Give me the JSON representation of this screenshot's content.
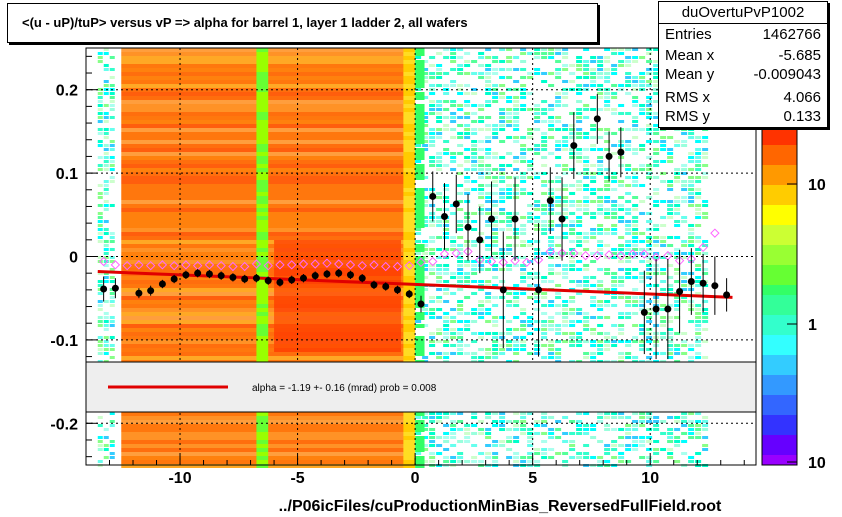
{
  "title": "<(u - uP)/tuP> versus   vP => alpha for barrel 1, layer 1 ladder 2, all wafers",
  "stats": {
    "name": "duOvertuPvP1002",
    "rows": [
      {
        "key": "Entries",
        "value": "1462766"
      },
      {
        "key": "Mean x",
        "value": "-5.685"
      },
      {
        "key": "Mean y",
        "value": "-0.009043"
      },
      {
        "key": "RMS x",
        "value": "4.066"
      },
      {
        "key": "RMS y",
        "value": "0.133"
      }
    ]
  },
  "fit_label": "alpha =   -1.19 +-  0.16 (mrad) prob = 0.008",
  "xlabel": "../P06icFiles/cuProductionMinBias_ReversedFullField.root",
  "colors": {
    "fit": "#e00000",
    "points": "#000000",
    "open_points": "#ff66ff"
  },
  "chart_data": {
    "type": "scatter",
    "title": "<(u - uP)/tuP> versus   vP => alpha for barrel 1, layer 1 ladder 2, all wafers",
    "xlabel": "../P06icFiles/cuProductionMinBias_ReversedFullField.root",
    "ylabel": "",
    "xlim": [
      -14,
      14.5
    ],
    "ylim": [
      -0.25,
      0.25
    ],
    "xticks": [
      -10,
      -5,
      0,
      5,
      10
    ],
    "xtick_labels": [
      "-10",
      "-5",
      "0",
      "5",
      "10"
    ],
    "yticks": [
      -0.2,
      -0.1,
      0,
      0.1,
      0.2
    ],
    "ytick_labels": [
      "-0.2",
      "-0.1",
      "0",
      "0.1",
      "0.2"
    ],
    "grid": true,
    "colorbar": {
      "scale": "log",
      "tick_labels": [
        "10",
        "1",
        "10"
      ]
    },
    "fit_line": {
      "x": [
        -13.5,
        13.5
      ],
      "y": [
        -0.018,
        -0.049
      ]
    },
    "series": [
      {
        "marker": "filled-circle",
        "points": [
          [
            -13.25,
            -0.039,
            0.015
          ],
          [
            -12.75,
            -0.038,
            0.012
          ],
          [
            -11.75,
            -0.044,
            0.006
          ],
          [
            -11.25,
            -0.041,
            0.006
          ],
          [
            -10.75,
            -0.033,
            0.005
          ],
          [
            -10.25,
            -0.027,
            0.005
          ],
          [
            -9.75,
            -0.022,
            0.005
          ],
          [
            -9.25,
            -0.02,
            0.005
          ],
          [
            -8.75,
            -0.021,
            0.005
          ],
          [
            -8.25,
            -0.023,
            0.005
          ],
          [
            -7.75,
            -0.025,
            0.005
          ],
          [
            -7.25,
            -0.027,
            0.005
          ],
          [
            -6.75,
            -0.026,
            0.005
          ],
          [
            -6.25,
            -0.029,
            0.005
          ],
          [
            -5.75,
            -0.031,
            0.005
          ],
          [
            -5.25,
            -0.028,
            0.005
          ],
          [
            -4.75,
            -0.026,
            0.005
          ],
          [
            -4.25,
            -0.023,
            0.005
          ],
          [
            -3.75,
            -0.021,
            0.005
          ],
          [
            -3.25,
            -0.02,
            0.005
          ],
          [
            -2.75,
            -0.022,
            0.005
          ],
          [
            -2.25,
            -0.026,
            0.005
          ],
          [
            -1.75,
            -0.034,
            0.005
          ],
          [
            -1.25,
            -0.036,
            0.005
          ],
          [
            -0.75,
            -0.04,
            0.005
          ],
          [
            -0.25,
            -0.045,
            0.005
          ],
          [
            0.25,
            -0.057,
            0.01
          ],
          [
            0.75,
            0.072,
            0.03
          ],
          [
            1.25,
            0.048,
            0.04
          ],
          [
            1.75,
            0.063,
            0.035
          ],
          [
            2.25,
            0.035,
            0.04
          ],
          [
            2.75,
            0.02,
            0.04
          ],
          [
            3.25,
            0.045,
            0.045
          ],
          [
            3.75,
            -0.04,
            0.07
          ],
          [
            4.25,
            0.045,
            0.05
          ],
          [
            5.25,
            -0.04,
            0.08
          ],
          [
            5.75,
            0.067,
            0.04
          ],
          [
            6.25,
            0.045,
            0.05
          ],
          [
            6.75,
            0.133,
            0.04
          ],
          [
            7.75,
            0.165,
            0.03
          ],
          [
            8.25,
            0.12,
            0.03
          ],
          [
            8.75,
            0.125,
            0.03
          ],
          [
            9.75,
            -0.067,
            0.05
          ],
          [
            10.25,
            -0.063,
            0.06
          ],
          [
            10.75,
            -0.063,
            0.06
          ],
          [
            11.25,
            -0.042,
            0.05
          ],
          [
            11.75,
            -0.03,
            0.04
          ],
          [
            12.25,
            -0.032,
            0.035
          ],
          [
            12.75,
            -0.035,
            0.035
          ],
          [
            13.25,
            -0.046,
            0.02
          ]
        ]
      },
      {
        "marker": "open-diamond",
        "points": [
          [
            -13.25,
            -0.006
          ],
          [
            -12.75,
            -0.01
          ],
          [
            -12.25,
            -0.011
          ],
          [
            -11.75,
            -0.01
          ],
          [
            -11.25,
            -0.011
          ],
          [
            -10.75,
            -0.01
          ],
          [
            -10.25,
            -0.011
          ],
          [
            -9.75,
            -0.01
          ],
          [
            -9.25,
            -0.011
          ],
          [
            -8.75,
            -0.01
          ],
          [
            -8.25,
            -0.011
          ],
          [
            -7.75,
            -0.012
          ],
          [
            -7.25,
            -0.012
          ],
          [
            -6.75,
            -0.009
          ],
          [
            -6.25,
            -0.011
          ],
          [
            -5.75,
            -0.01
          ],
          [
            -5.25,
            -0.01
          ],
          [
            -4.75,
            -0.009
          ],
          [
            -4.25,
            -0.009
          ],
          [
            -3.75,
            -0.008
          ],
          [
            -3.25,
            -0.009
          ],
          [
            -2.75,
            -0.01
          ],
          [
            -2.25,
            -0.011
          ],
          [
            -1.75,
            -0.01
          ],
          [
            -1.25,
            -0.012
          ],
          [
            -0.75,
            -0.012
          ],
          [
            -0.25,
            -0.011
          ],
          [
            0.25,
            -0.007
          ],
          [
            0.75,
            -0.006
          ],
          [
            1.25,
            0.003
          ],
          [
            1.75,
            0.004
          ],
          [
            2.25,
            0.006
          ],
          [
            2.75,
            -0.004
          ],
          [
            3.25,
            -0.006
          ],
          [
            3.75,
            -0.007
          ],
          [
            4.25,
            -0.005
          ],
          [
            4.75,
            -0.007
          ],
          [
            5.25,
            -0.004
          ],
          [
            5.75,
            0.006
          ],
          [
            6.25,
            0.004
          ],
          [
            6.75,
            0.004
          ],
          [
            7.25,
            0.001
          ],
          [
            7.75,
            0.001
          ],
          [
            8.25,
            0.002
          ],
          [
            8.75,
            0.001
          ],
          [
            9.25,
            0.003
          ],
          [
            9.75,
            0.003
          ],
          [
            10.25,
            -0.001
          ],
          [
            10.75,
            0.001
          ],
          [
            11.25,
            -0.005
          ],
          [
            11.75,
            -0.003
          ],
          [
            12.25,
            0.011
          ],
          [
            12.75,
            0.028
          ]
        ]
      }
    ]
  }
}
